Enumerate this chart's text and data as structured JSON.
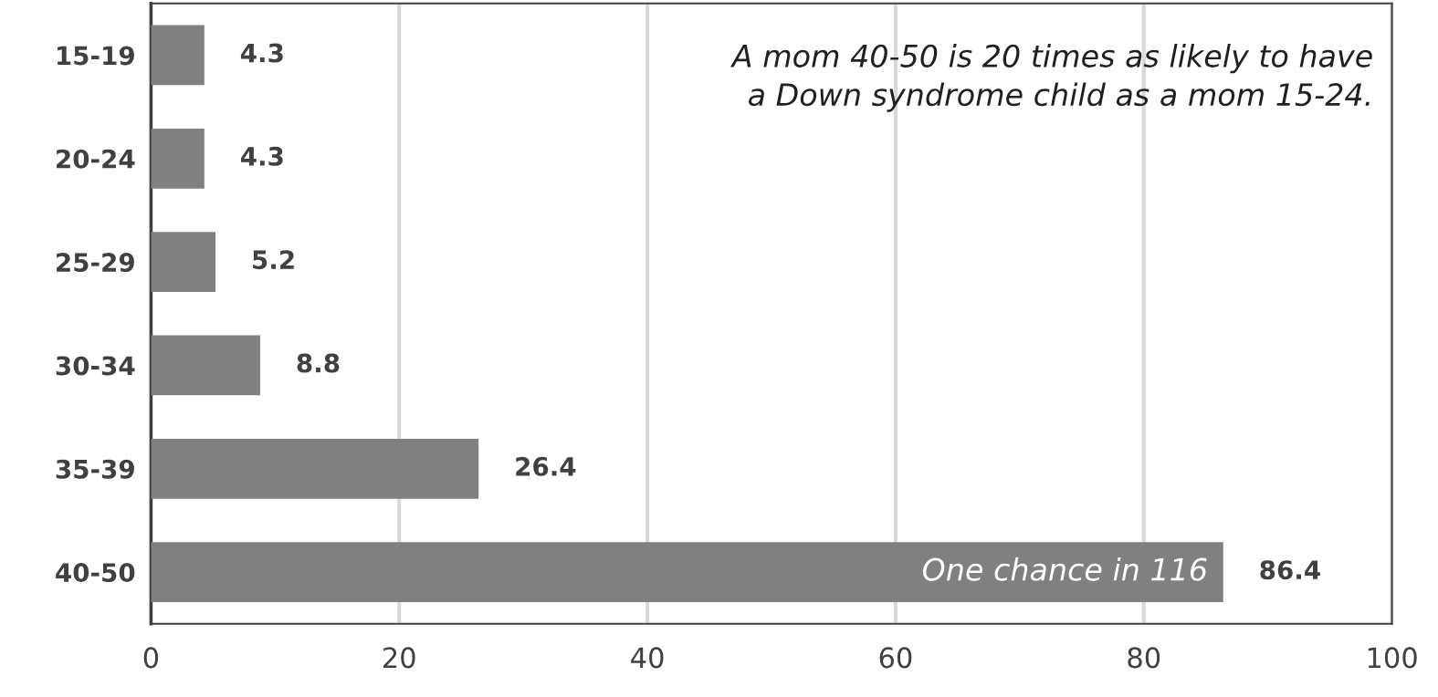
{
  "chart_data": {
    "type": "bar",
    "orientation": "horizontal",
    "categories": [
      "15-19",
      "20-24",
      "25-29",
      "30-34",
      "35-39",
      "40-50"
    ],
    "values": [
      4.3,
      4.3,
      5.2,
      8.8,
      26.4,
      86.4
    ],
    "color": "#808080",
    "xlim": [
      0,
      100
    ],
    "xticks": [
      0,
      20,
      40,
      60,
      80,
      100
    ],
    "grid": "x",
    "data_labels": true,
    "tick_labels": "xy",
    "annotations": [
      "A mom 40-50 is 20 times as likely to have\na Down syndrome child as a mom 15-24.",
      {
        "text": "One chance in 116",
        "x": 86.4,
        "y": "40-50"
      }
    ]
  }
}
